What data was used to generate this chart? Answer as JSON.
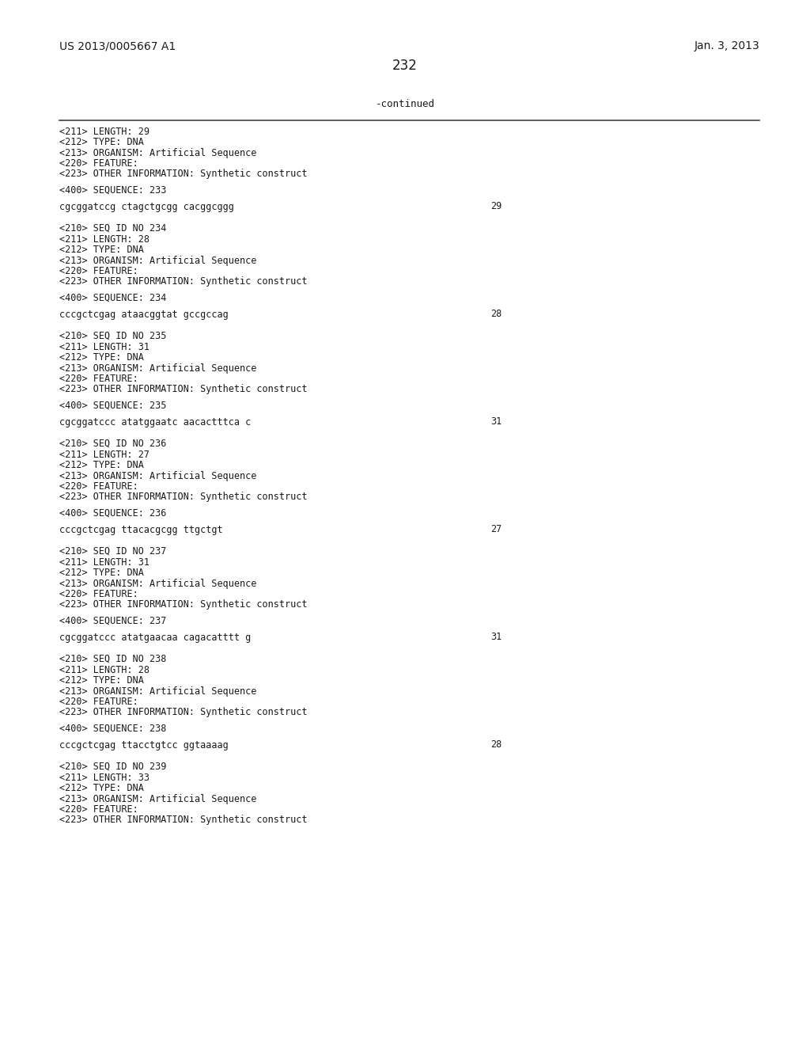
{
  "bg_color": "#ffffff",
  "header_left": "US 2013/0005667 A1",
  "header_right": "Jan. 3, 2013",
  "page_number": "232",
  "continued_label": "-continued",
  "font_mono": "DejaVu Sans Mono",
  "font_sans": "DejaVu Sans",
  "content": [
    {
      "type": "meta",
      "lines": [
        "<211> LENGTH: 29",
        "<212> TYPE: DNA",
        "<213> ORGANISM: Artificial Sequence",
        "<220> FEATURE:",
        "<223> OTHER INFORMATION: Synthetic construct"
      ]
    },
    {
      "type": "blank"
    },
    {
      "type": "seq_label",
      "text": "<400> SEQUENCE: 233"
    },
    {
      "type": "blank"
    },
    {
      "type": "sequence",
      "seq": "cgcggatccg ctagctgcgg cacggcggg",
      "num": "29"
    },
    {
      "type": "blank"
    },
    {
      "type": "blank"
    },
    {
      "type": "meta",
      "lines": [
        "<210> SEQ ID NO 234",
        "<211> LENGTH: 28",
        "<212> TYPE: DNA",
        "<213> ORGANISM: Artificial Sequence",
        "<220> FEATURE:",
        "<223> OTHER INFORMATION: Synthetic construct"
      ]
    },
    {
      "type": "blank"
    },
    {
      "type": "seq_label",
      "text": "<400> SEQUENCE: 234"
    },
    {
      "type": "blank"
    },
    {
      "type": "sequence",
      "seq": "cccgctcgag ataacggtat gccgccag",
      "num": "28"
    },
    {
      "type": "blank"
    },
    {
      "type": "blank"
    },
    {
      "type": "meta",
      "lines": [
        "<210> SEQ ID NO 235",
        "<211> LENGTH: 31",
        "<212> TYPE: DNA",
        "<213> ORGANISM: Artificial Sequence",
        "<220> FEATURE:",
        "<223> OTHER INFORMATION: Synthetic construct"
      ]
    },
    {
      "type": "blank"
    },
    {
      "type": "seq_label",
      "text": "<400> SEQUENCE: 235"
    },
    {
      "type": "blank"
    },
    {
      "type": "sequence",
      "seq": "cgcggatccc atatggaatc aacactttca c",
      "num": "31"
    },
    {
      "type": "blank"
    },
    {
      "type": "blank"
    },
    {
      "type": "meta",
      "lines": [
        "<210> SEQ ID NO 236",
        "<211> LENGTH: 27",
        "<212> TYPE: DNA",
        "<213> ORGANISM: Artificial Sequence",
        "<220> FEATURE:",
        "<223> OTHER INFORMATION: Synthetic construct"
      ]
    },
    {
      "type": "blank"
    },
    {
      "type": "seq_label",
      "text": "<400> SEQUENCE: 236"
    },
    {
      "type": "blank"
    },
    {
      "type": "sequence",
      "seq": "cccgctcgag ttacacgcgg ttgctgt",
      "num": "27"
    },
    {
      "type": "blank"
    },
    {
      "type": "blank"
    },
    {
      "type": "meta",
      "lines": [
        "<210> SEQ ID NO 237",
        "<211> LENGTH: 31",
        "<212> TYPE: DNA",
        "<213> ORGANISM: Artificial Sequence",
        "<220> FEATURE:",
        "<223> OTHER INFORMATION: Synthetic construct"
      ]
    },
    {
      "type": "blank"
    },
    {
      "type": "seq_label",
      "text": "<400> SEQUENCE: 237"
    },
    {
      "type": "blank"
    },
    {
      "type": "sequence",
      "seq": "cgcggatccc atatgaacaa cagacatttt g",
      "num": "31"
    },
    {
      "type": "blank"
    },
    {
      "type": "blank"
    },
    {
      "type": "meta",
      "lines": [
        "<210> SEQ ID NO 238",
        "<211> LENGTH: 28",
        "<212> TYPE: DNA",
        "<213> ORGANISM: Artificial Sequence",
        "<220> FEATURE:",
        "<223> OTHER INFORMATION: Synthetic construct"
      ]
    },
    {
      "type": "blank"
    },
    {
      "type": "seq_label",
      "text": "<400> SEQUENCE: 238"
    },
    {
      "type": "blank"
    },
    {
      "type": "sequence",
      "seq": "cccgctcgag ttacctgtcc ggtaaaag",
      "num": "28"
    },
    {
      "type": "blank"
    },
    {
      "type": "blank"
    },
    {
      "type": "meta",
      "lines": [
        "<210> SEQ ID NO 239",
        "<211> LENGTH: 33",
        "<212> TYPE: DNA",
        "<213> ORGANISM: Artificial Sequence",
        "<220> FEATURE:",
        "<223> OTHER INFORMATION: Synthetic construct"
      ]
    }
  ]
}
